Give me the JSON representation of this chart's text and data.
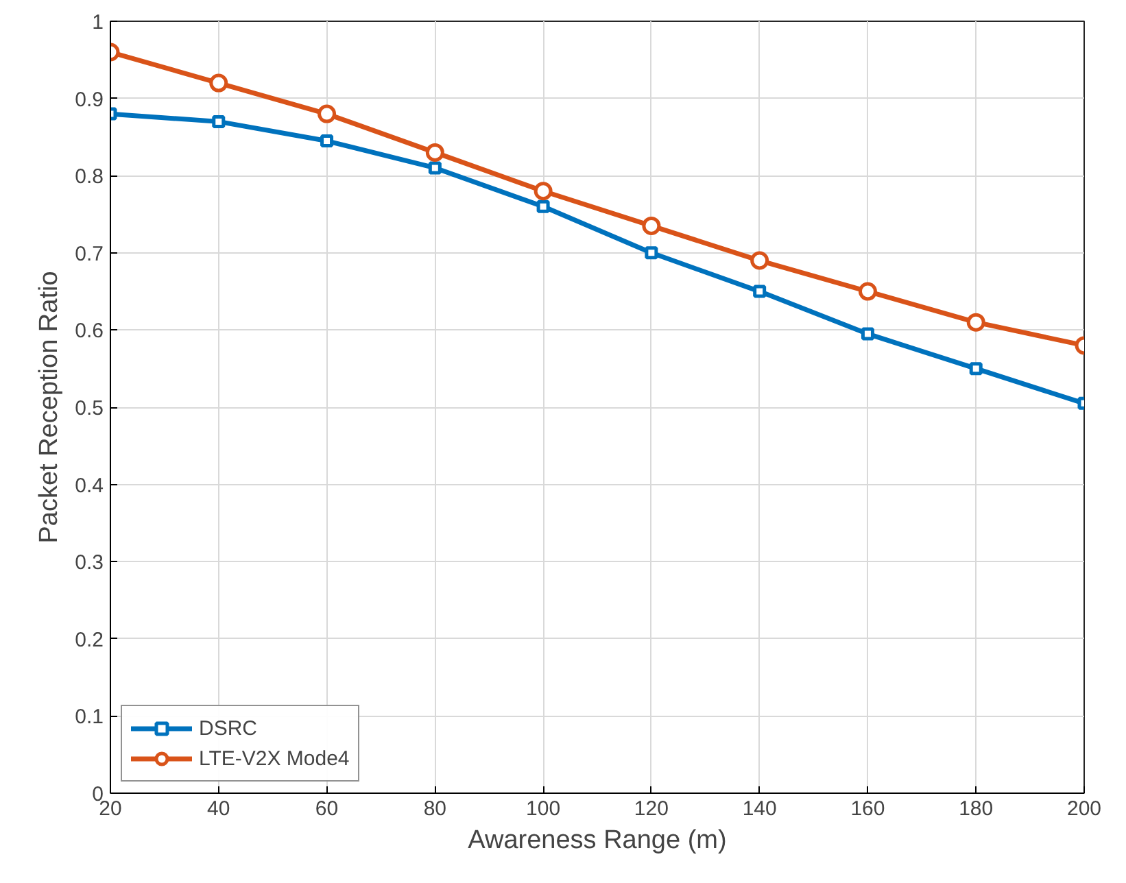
{
  "chart_data": {
    "type": "line",
    "xlabel": "Awareness Range (m)",
    "ylabel": "Packet Reception Ratio",
    "x": [
      20,
      40,
      60,
      80,
      100,
      120,
      140,
      160,
      180,
      200
    ],
    "series": [
      {
        "name": "DSRC",
        "color": "#0072bd",
        "marker": "square",
        "values": [
          0.88,
          0.87,
          0.845,
          0.81,
          0.76,
          0.7,
          0.65,
          0.595,
          0.55,
          0.505
        ]
      },
      {
        "name": "LTE-V2X Mode4",
        "color": "#d95319",
        "marker": "circle",
        "values": [
          0.96,
          0.92,
          0.88,
          0.83,
          0.78,
          0.735,
          0.69,
          0.65,
          0.61,
          0.58
        ]
      }
    ],
    "xlim": [
      20,
      200
    ],
    "xticks": [
      20,
      40,
      60,
      80,
      100,
      120,
      140,
      160,
      180,
      200
    ],
    "ylim": [
      0,
      1
    ],
    "yticks": [
      0,
      0.1,
      0.2,
      0.3,
      0.4,
      0.5,
      0.6,
      0.7,
      0.8,
      0.9,
      1
    ],
    "grid": true,
    "legend": "bottom left",
    "line_style": "solid"
  }
}
